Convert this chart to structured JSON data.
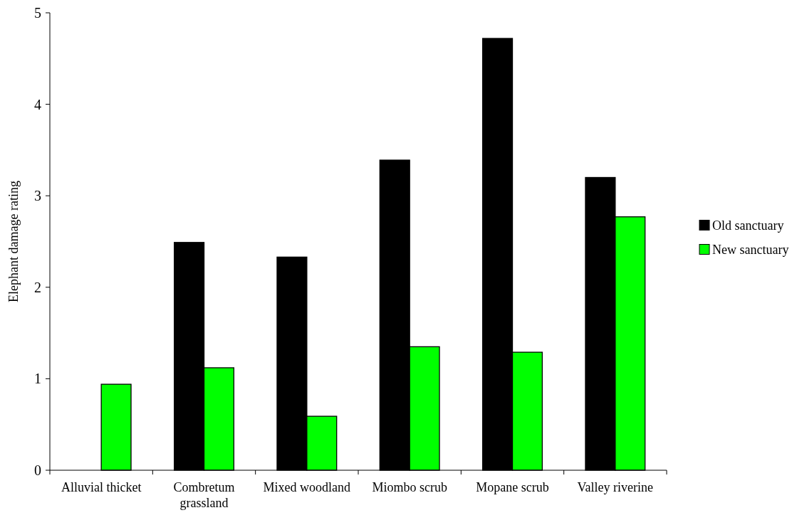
{
  "chart_data": {
    "type": "bar",
    "ylabel": "Elephant damage rating",
    "categories": [
      "Alluvial thicket",
      "Combretum grassland",
      "Mixed woodland",
      "Miombo scrub",
      "Mopane scrub",
      "Valley riverine"
    ],
    "series": [
      {
        "name": "Old sanctuary",
        "color": "#000000",
        "values": [
          null,
          2.49,
          2.33,
          3.39,
          4.72,
          3.2
        ]
      },
      {
        "name": "New sanctuary",
        "color": "#00ff00",
        "values": [
          0.94,
          1.12,
          0.59,
          1.35,
          1.29,
          2.77
        ]
      }
    ],
    "ylim": [
      0,
      5
    ],
    "yticks": [
      0,
      1,
      2,
      3,
      4,
      5
    ],
    "grid": false,
    "legend": "right"
  }
}
